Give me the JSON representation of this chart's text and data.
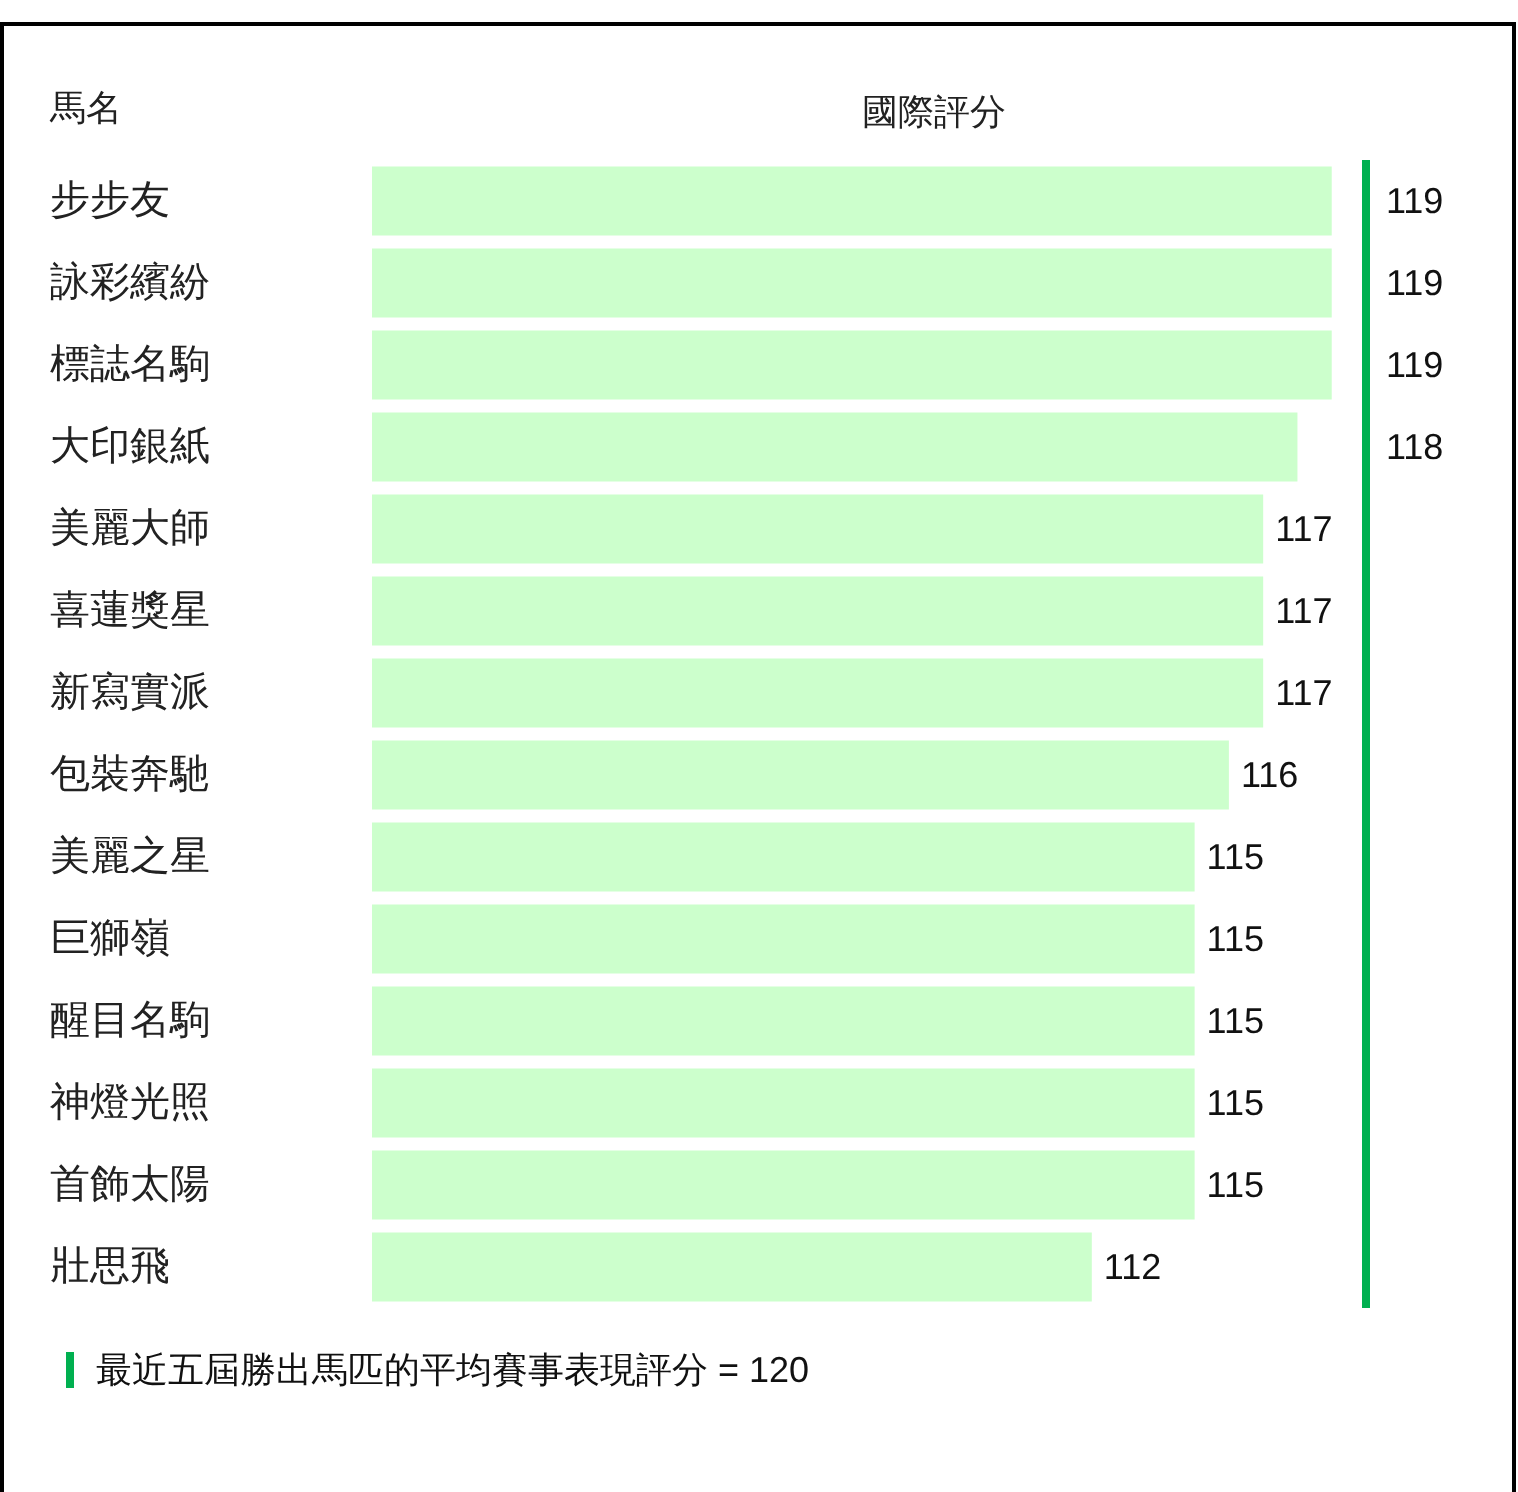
{
  "chart_data": {
    "type": "bar",
    "orientation": "horizontal",
    "title": "國際評分",
    "ylabel": "馬名",
    "categories": [
      "步步友",
      "詠彩繽紛",
      "標誌名駒",
      "大印銀紙",
      "美麗大師",
      "喜蓮獎星",
      "新寫實派",
      "包裝奔馳",
      "美麗之星",
      "巨獅嶺",
      "醒目名駒",
      "神燈光照",
      "首飾太陽",
      "壯思飛"
    ],
    "values": [
      119,
      119,
      119,
      118,
      117,
      117,
      117,
      116,
      115,
      115,
      115,
      115,
      115,
      112
    ],
    "color": "#ccffcc",
    "xlim": [
      91,
      120
    ],
    "tick_labels": "y",
    "legend": "bottom left",
    "data_labels": true,
    "ref_lines": [
      {
        "axis": "x",
        "value": 120,
        "label": "最近五屆勝出馬匹的平均賽事表現評分 = 120",
        "color": "#00b050"
      }
    ]
  }
}
